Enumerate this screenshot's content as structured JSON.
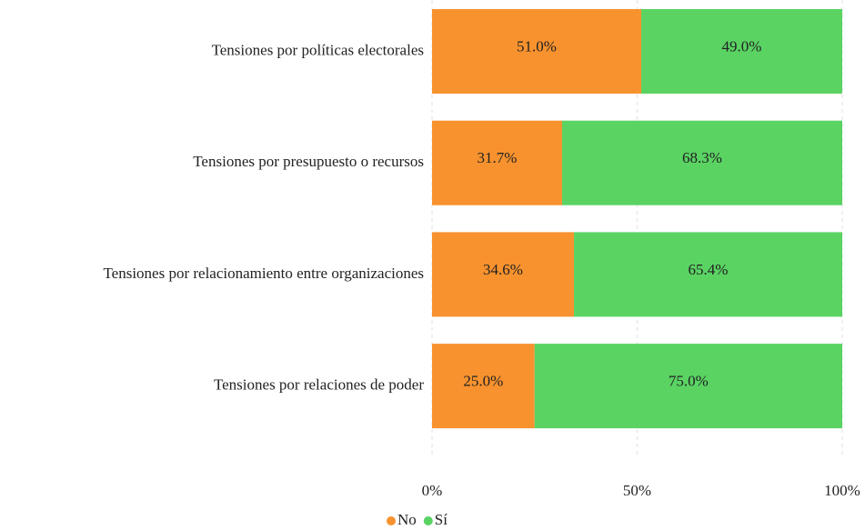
{
  "chart_data": {
    "type": "stacked_bar_horizontal",
    "categories": [
      "Tensiones por políticas electorales",
      "Tensiones por presupuesto o recursos",
      "Tensiones por relacionamiento entre organizaciones",
      "Tensiones por relaciones de poder"
    ],
    "series": [
      {
        "name": "No",
        "color": "#f7922e",
        "values": [
          51.0,
          31.7,
          34.6,
          25.0
        ],
        "value_labels": [
          "51.0%",
          "31.7%",
          "34.6%",
          "25.0%"
        ]
      },
      {
        "name": "Sí",
        "color": "#5ad363",
        "values": [
          49.0,
          68.3,
          65.4,
          75.0
        ],
        "value_labels": [
          "49.0%",
          "68.3%",
          "65.4%",
          "75.0%"
        ]
      }
    ],
    "xlim": [
      0,
      100
    ],
    "xticks": [
      {
        "value": 0,
        "label": "0%"
      },
      {
        "value": 50,
        "label": "50%"
      },
      {
        "value": 100,
        "label": "100%"
      }
    ],
    "grid": true,
    "legend": "bottom"
  }
}
